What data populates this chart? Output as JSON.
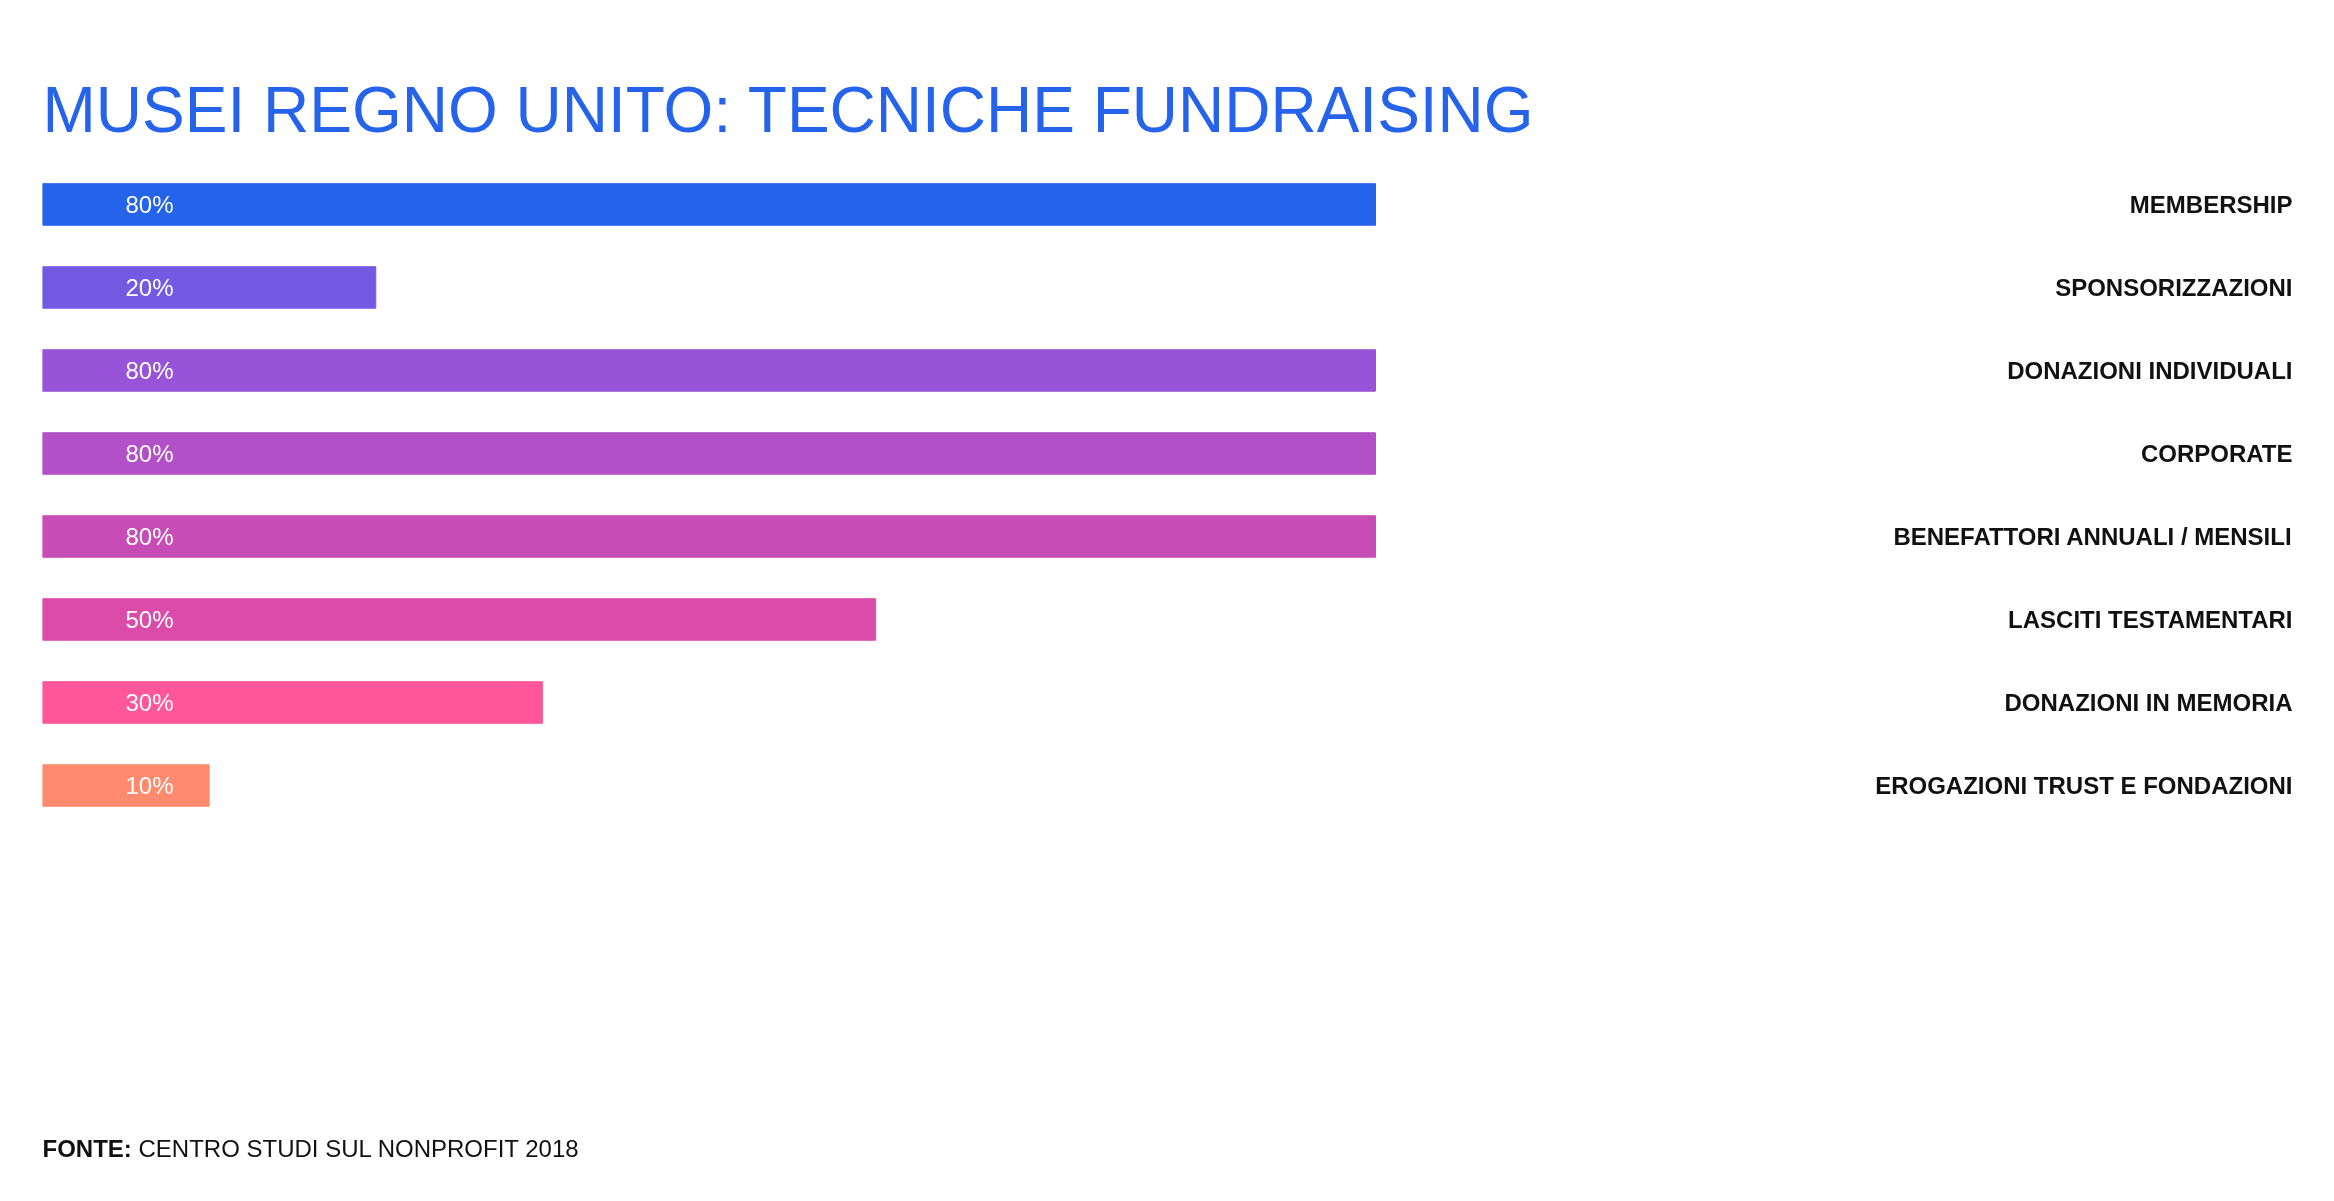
{
  "chart_data": {
    "type": "bar",
    "orientation": "horizontal",
    "title": "MUSEI REGNO UNITO: TECNICHE FUNDRAISING",
    "categories": [
      "MEMBERSHIP",
      "SPONSORIZZAZIONI",
      "DONAZIONI INDIVIDUALI",
      "CORPORATE",
      "BENEFATTORI ANNUALI / MENSILI",
      "LASCITI TESTAMENTARI",
      "DONAZIONI IN MEMORIA",
      "EROGAZIONI TRUST E FONDAZIONI"
    ],
    "values": [
      80,
      20,
      80,
      80,
      80,
      50,
      30,
      10
    ],
    "value_labels": [
      "80%",
      "20%",
      "80%",
      "80%",
      "80%",
      "50%",
      "30%",
      "10%"
    ],
    "colors": [
      "#2563eb",
      "#735ae2",
      "#9854d8",
      "#b250c8",
      "#c84cb6",
      "#db4ca8",
      "#ff5599",
      "#ff8a6e"
    ],
    "annotations": [
      "FONTE: CENTRO STUDI SUL NONPROFIT 2018"
    ]
  }
}
